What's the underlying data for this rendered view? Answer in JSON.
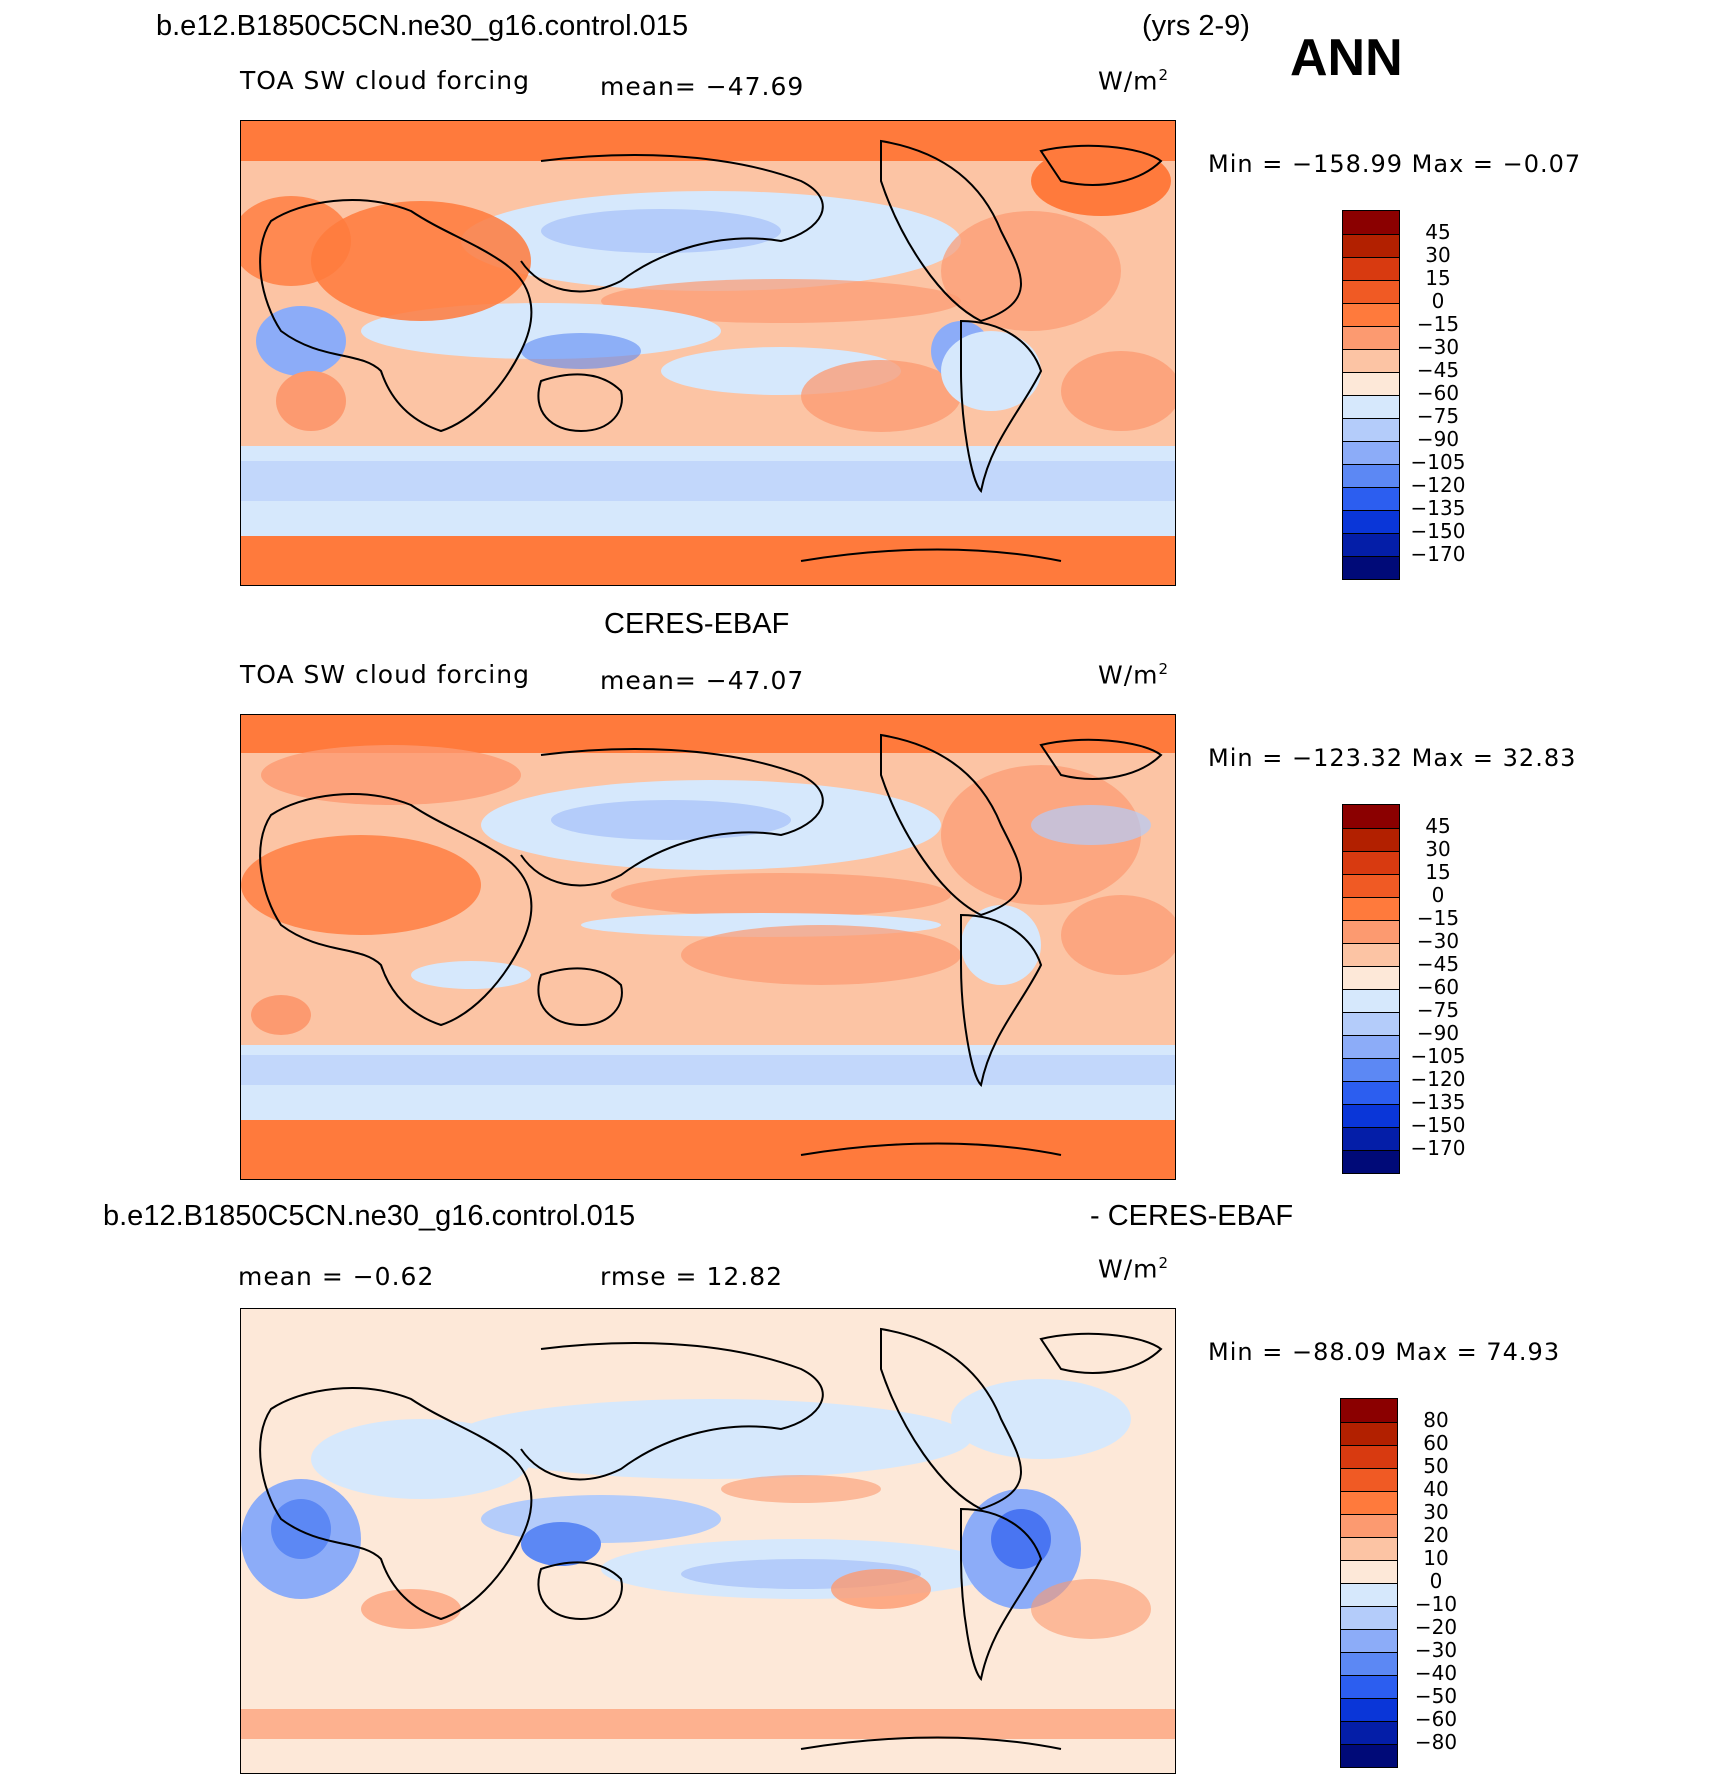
{
  "header": {
    "case_name": "b.e12.B1850C5CN.ne30_g16.control.015",
    "years": "(yrs 2-9)",
    "season": "ANN"
  },
  "panels": [
    {
      "id": "model",
      "variable": "TOA SW cloud forcing",
      "stat": "mean= −47.69",
      "units": "W/m",
      "units_sup": "2",
      "minmax": "Min = −158.99 Max =  −0.07",
      "colorbar_labels": [
        "45",
        "30",
        "15",
        "0",
        "−15",
        "−30",
        "−45",
        "−60",
        "−75",
        "−90",
        "−105",
        "−120",
        "−135",
        "−150",
        "−170"
      ],
      "colorbar_colors": [
        "#8b0000",
        "#b22000",
        "#d83a10",
        "#f05a24",
        "#ff7a3c",
        "#fc9a70",
        "#fcc4a4",
        "#fde8d8",
        "#d6e8fc",
        "#b4ccfa",
        "#8cacf8",
        "#5c88f4",
        "#2c5ef0",
        "#0a36d8",
        "#041ea8",
        "#000a78"
      ]
    },
    {
      "id": "obs",
      "title": "CERES-EBAF",
      "variable": "TOA SW cloud forcing",
      "stat": "mean= −47.07",
      "units": "W/m",
      "units_sup": "2",
      "minmax": "Min = −123.32 Max =  32.83",
      "colorbar_labels": [
        "45",
        "30",
        "15",
        "0",
        "−15",
        "−30",
        "−45",
        "−60",
        "−75",
        "−90",
        "−105",
        "−120",
        "−135",
        "−150",
        "−170"
      ],
      "colorbar_colors": [
        "#8b0000",
        "#b22000",
        "#d83a10",
        "#f05a24",
        "#ff7a3c",
        "#fc9a70",
        "#fcc4a4",
        "#fde8d8",
        "#d6e8fc",
        "#b4ccfa",
        "#8cacf8",
        "#5c88f4",
        "#2c5ef0",
        "#0a36d8",
        "#041ea8",
        "#000a78"
      ]
    },
    {
      "id": "diff",
      "title_left": "b.e12.B1850C5CN.ne30_g16.control.015",
      "title_right": "- CERES-EBAF",
      "stat": "mean =   −0.62",
      "stat2": "rmse =   12.82",
      "units": "W/m",
      "units_sup": "2",
      "minmax": "Min = −88.09 Max =  74.93",
      "colorbar_labels": [
        "80",
        "60",
        "50",
        "40",
        "30",
        "20",
        "10",
        "0",
        "−10",
        "−20",
        "−30",
        "−40",
        "−50",
        "−60",
        "−80"
      ],
      "colorbar_colors": [
        "#8b0000",
        "#b22000",
        "#d83a10",
        "#f05a24",
        "#ff7a3c",
        "#fc9a70",
        "#fcc4a4",
        "#fde8d8",
        "#d6e8fc",
        "#b4ccfa",
        "#8cacf8",
        "#5c88f4",
        "#2c5ef0",
        "#0a36d8",
        "#041ea8",
        "#000a78"
      ]
    }
  ]
}
